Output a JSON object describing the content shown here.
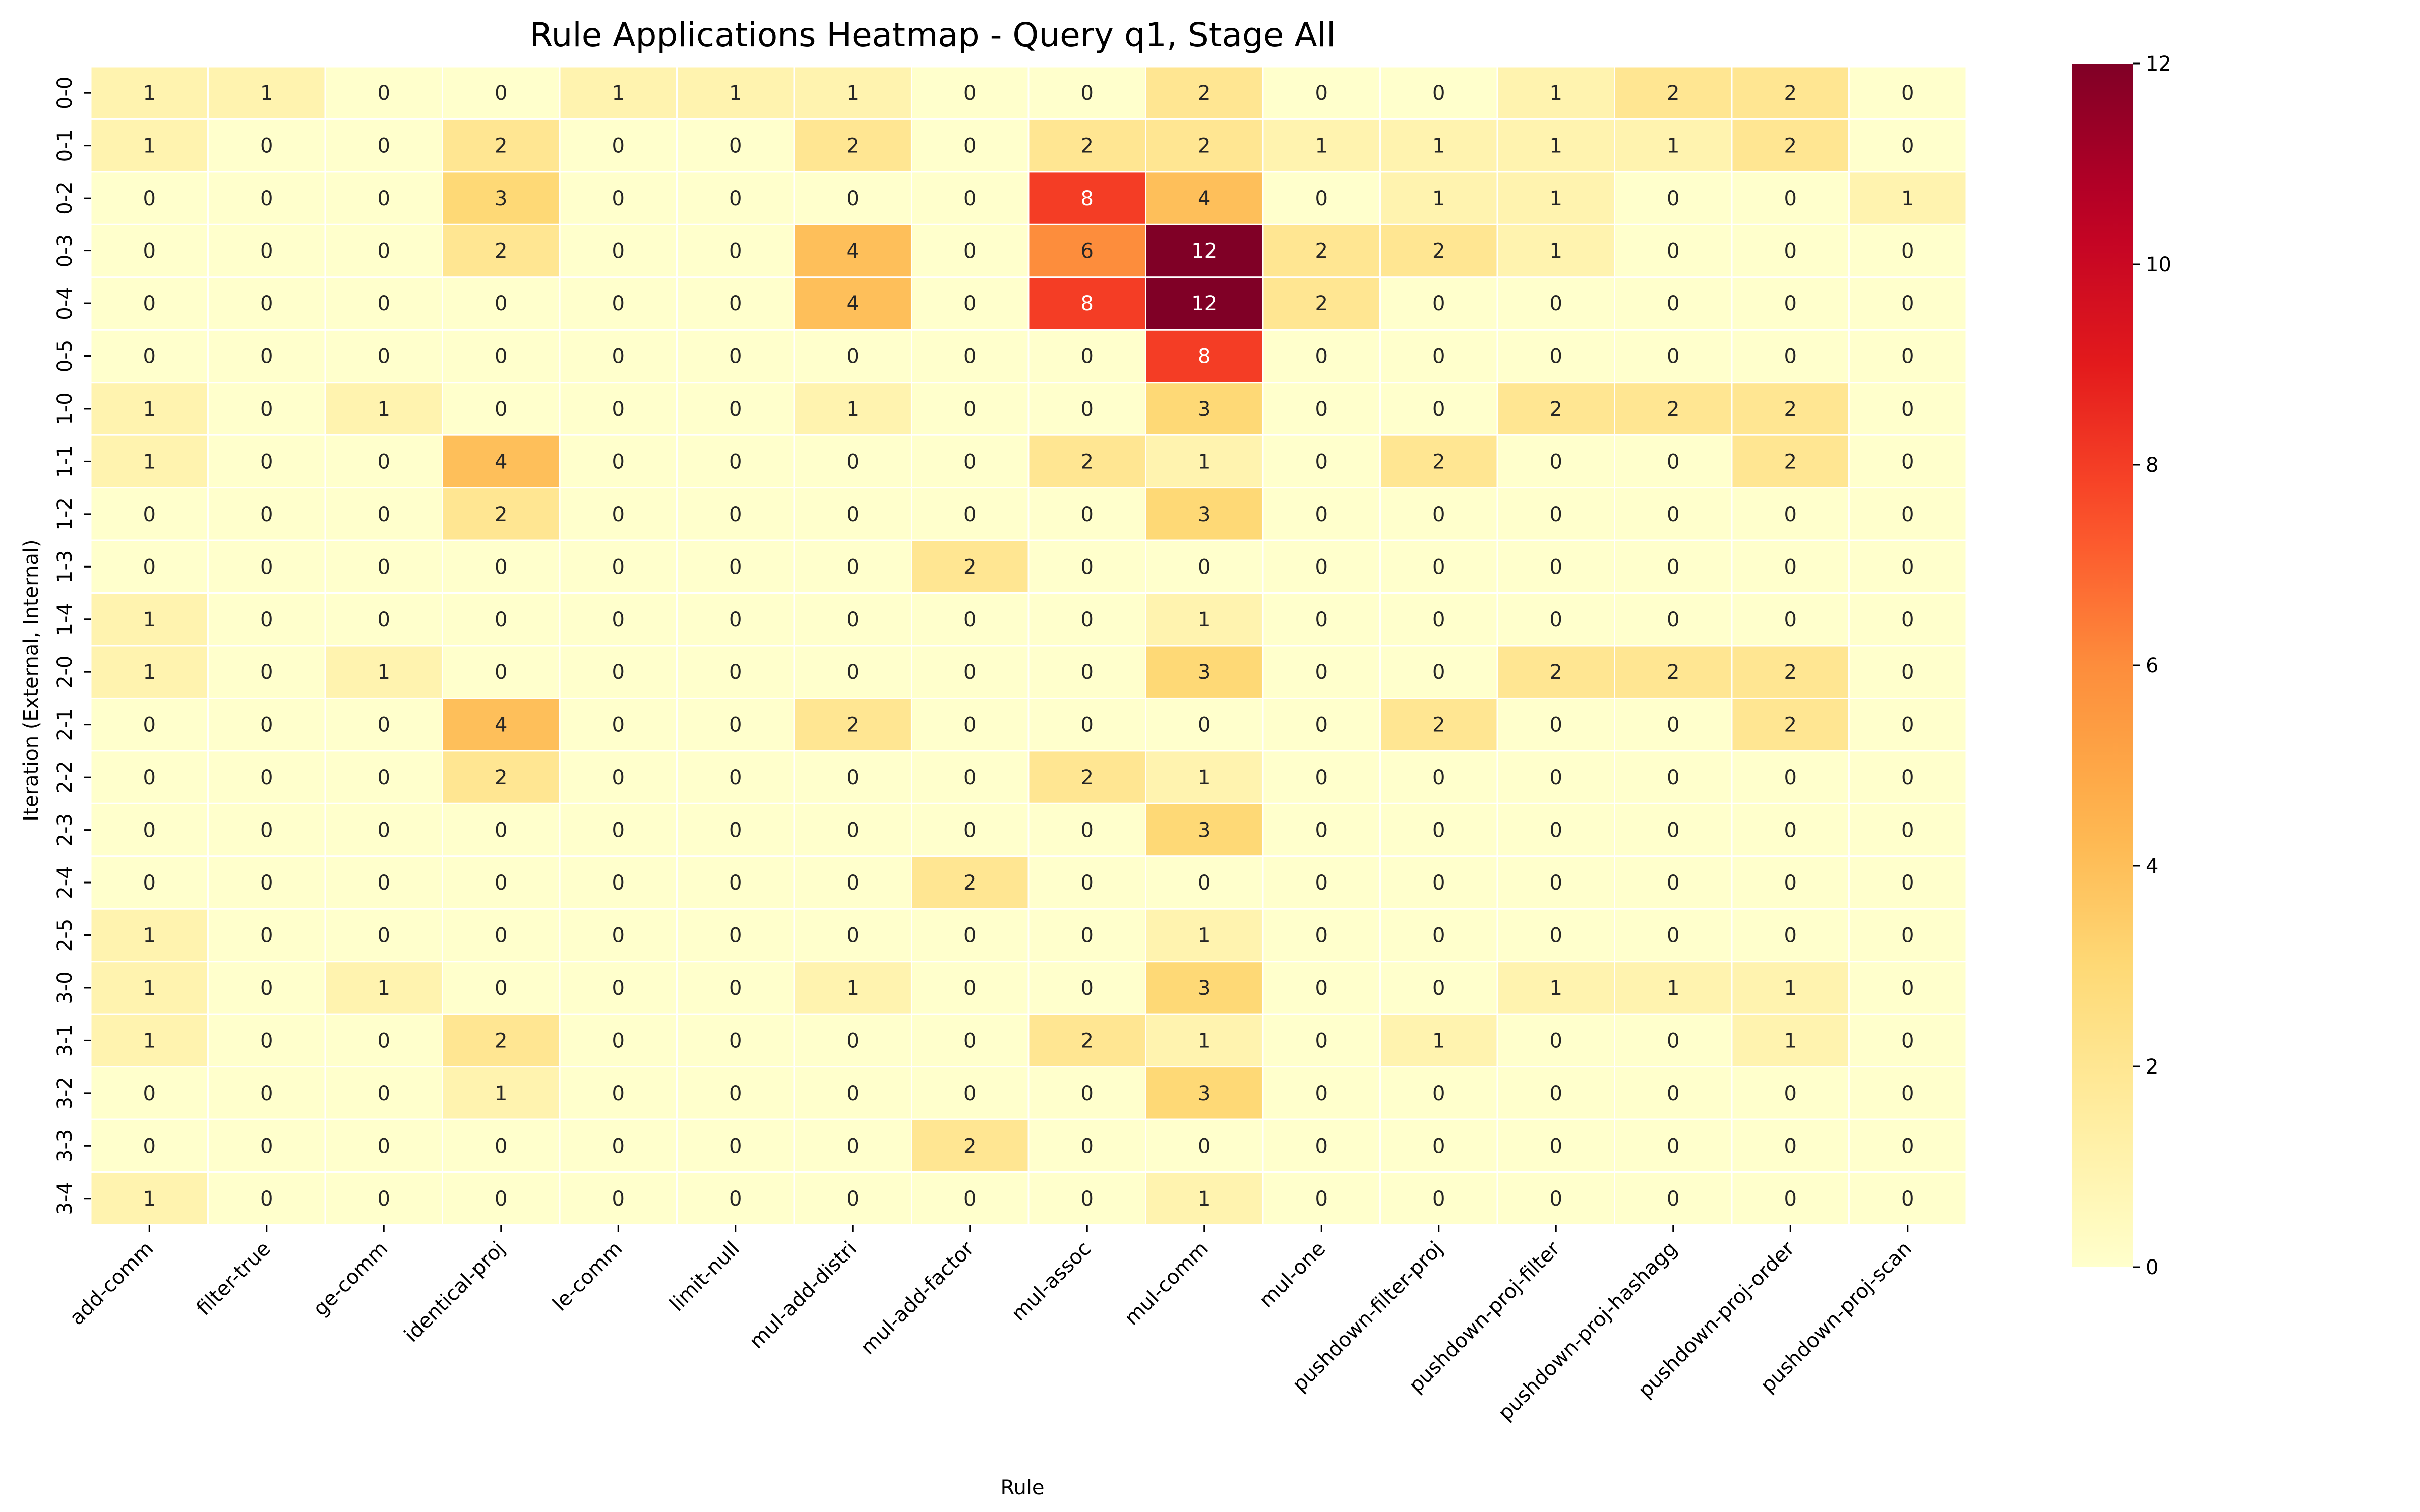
{
  "chart_data": {
    "type": "heatmap",
    "title": "Rule Applications Heatmap - Query q1, Stage All",
    "xlabel": "Rule",
    "ylabel": "Iteration (External, Internal)",
    "x_categories": [
      "add-comm",
      "filter-true",
      "ge-comm",
      "identical-proj",
      "le-comm",
      "limit-null",
      "mul-add-distri",
      "mul-add-factor",
      "mul-assoc",
      "mul-comm",
      "mul-one",
      "pushdown-filter-proj",
      "pushdown-proj-filter",
      "pushdown-proj-hashagg",
      "pushdown-proj-order",
      "pushdown-proj-scan"
    ],
    "y_categories": [
      "0-0",
      "0-1",
      "0-2",
      "0-3",
      "0-4",
      "0-5",
      "1-0",
      "1-1",
      "1-2",
      "1-3",
      "1-4",
      "2-0",
      "2-1",
      "2-2",
      "2-3",
      "2-4",
      "2-5",
      "3-0",
      "3-1",
      "3-2",
      "3-3",
      "3-4"
    ],
    "values": [
      [
        1,
        1,
        0,
        0,
        1,
        1,
        1,
        0,
        0,
        2,
        0,
        0,
        1,
        2,
        2,
        0
      ],
      [
        1,
        0,
        0,
        2,
        0,
        0,
        2,
        0,
        2,
        2,
        1,
        1,
        1,
        1,
        2,
        0
      ],
      [
        0,
        0,
        0,
        3,
        0,
        0,
        0,
        0,
        8,
        4,
        0,
        1,
        1,
        0,
        0,
        1
      ],
      [
        0,
        0,
        0,
        2,
        0,
        0,
        4,
        0,
        6,
        12,
        2,
        2,
        1,
        0,
        0,
        0
      ],
      [
        0,
        0,
        0,
        0,
        0,
        0,
        4,
        0,
        8,
        12,
        2,
        0,
        0,
        0,
        0,
        0
      ],
      [
        0,
        0,
        0,
        0,
        0,
        0,
        0,
        0,
        0,
        8,
        0,
        0,
        0,
        0,
        0,
        0
      ],
      [
        1,
        0,
        1,
        0,
        0,
        0,
        1,
        0,
        0,
        3,
        0,
        0,
        2,
        2,
        2,
        0
      ],
      [
        1,
        0,
        0,
        4,
        0,
        0,
        0,
        0,
        2,
        1,
        0,
        2,
        0,
        0,
        2,
        0
      ],
      [
        0,
        0,
        0,
        2,
        0,
        0,
        0,
        0,
        0,
        3,
        0,
        0,
        0,
        0,
        0,
        0
      ],
      [
        0,
        0,
        0,
        0,
        0,
        0,
        0,
        2,
        0,
        0,
        0,
        0,
        0,
        0,
        0,
        0
      ],
      [
        1,
        0,
        0,
        0,
        0,
        0,
        0,
        0,
        0,
        1,
        0,
        0,
        0,
        0,
        0,
        0
      ],
      [
        1,
        0,
        1,
        0,
        0,
        0,
        0,
        0,
        0,
        3,
        0,
        0,
        2,
        2,
        2,
        0
      ],
      [
        0,
        0,
        0,
        4,
        0,
        0,
        2,
        0,
        0,
        0,
        0,
        2,
        0,
        0,
        2,
        0
      ],
      [
        0,
        0,
        0,
        2,
        0,
        0,
        0,
        0,
        2,
        1,
        0,
        0,
        0,
        0,
        0,
        0
      ],
      [
        0,
        0,
        0,
        0,
        0,
        0,
        0,
        0,
        0,
        3,
        0,
        0,
        0,
        0,
        0,
        0
      ],
      [
        0,
        0,
        0,
        0,
        0,
        0,
        0,
        2,
        0,
        0,
        0,
        0,
        0,
        0,
        0,
        0
      ],
      [
        1,
        0,
        0,
        0,
        0,
        0,
        0,
        0,
        0,
        1,
        0,
        0,
        0,
        0,
        0,
        0
      ],
      [
        1,
        0,
        1,
        0,
        0,
        0,
        1,
        0,
        0,
        3,
        0,
        0,
        1,
        1,
        1,
        0
      ],
      [
        1,
        0,
        0,
        2,
        0,
        0,
        0,
        0,
        2,
        1,
        0,
        1,
        0,
        0,
        1,
        0
      ],
      [
        0,
        0,
        0,
        1,
        0,
        0,
        0,
        0,
        0,
        3,
        0,
        0,
        0,
        0,
        0,
        0
      ],
      [
        0,
        0,
        0,
        0,
        0,
        0,
        0,
        2,
        0,
        0,
        0,
        0,
        0,
        0,
        0,
        0
      ],
      [
        1,
        0,
        0,
        0,
        0,
        0,
        0,
        0,
        0,
        1,
        0,
        0,
        0,
        0,
        0,
        0
      ]
    ],
    "vmin": 0,
    "vmax": 12,
    "colormap": "YlOrRd",
    "colorbar_ticks": [
      0,
      2,
      4,
      6,
      8,
      10,
      12
    ],
    "colorbar_tick_labels": [
      "0",
      "2",
      "4",
      "6",
      "8",
      "10",
      "12"
    ],
    "grid": false,
    "cell_separator_color": "#ffffff"
  }
}
